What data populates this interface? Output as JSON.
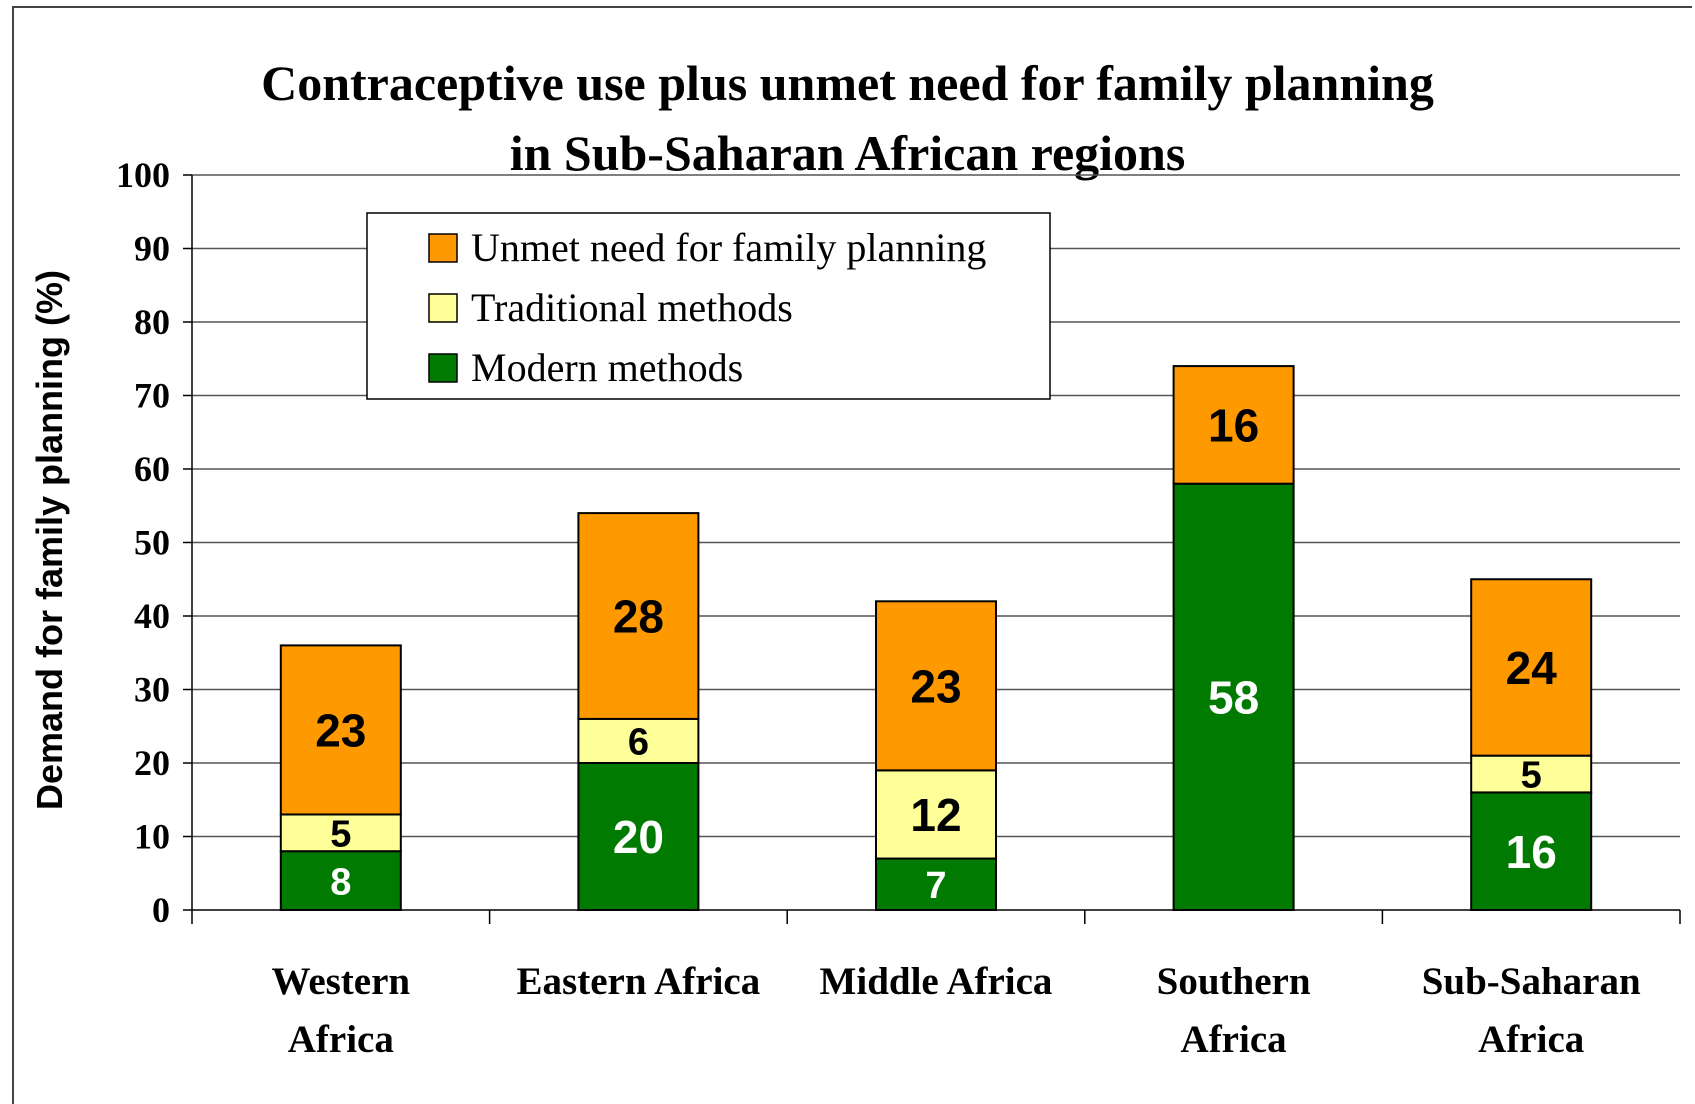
{
  "chart_data": {
    "type": "bar",
    "stacked": true,
    "title": [
      "Contraceptive use plus unmet need for family planning",
      "in Sub-Saharan African regions"
    ],
    "ylabel": "Demand for family planning (%)",
    "xlabel": "",
    "ylim": [
      0,
      100
    ],
    "yticks": [
      "0",
      "10",
      "20",
      "30",
      "40",
      "50",
      "60",
      "70",
      "80",
      "90",
      "100"
    ],
    "grid": true,
    "legend_position": "top-left inside",
    "categories": [
      [
        "Western",
        "Africa"
      ],
      [
        "Eastern Africa"
      ],
      [
        "Middle Africa"
      ],
      [
        "Southern",
        "Africa"
      ],
      [
        "Sub-Saharan",
        "Africa"
      ]
    ],
    "series": [
      {
        "name": "Modern methods",
        "color": "#007A00",
        "label_color": "#ffffff",
        "values": [
          8,
          20,
          7,
          58,
          16
        ]
      },
      {
        "name": "Traditional methods",
        "color": "#FFFF99",
        "label_color": "#000000",
        "values": [
          5,
          6,
          12,
          0,
          5
        ]
      },
      {
        "name": "Unmet need for family planning",
        "color": "#FF9900",
        "label_color": "#000000",
        "values": [
          23,
          28,
          23,
          16,
          24
        ]
      }
    ],
    "legend_order": [
      2,
      1,
      0
    ]
  }
}
